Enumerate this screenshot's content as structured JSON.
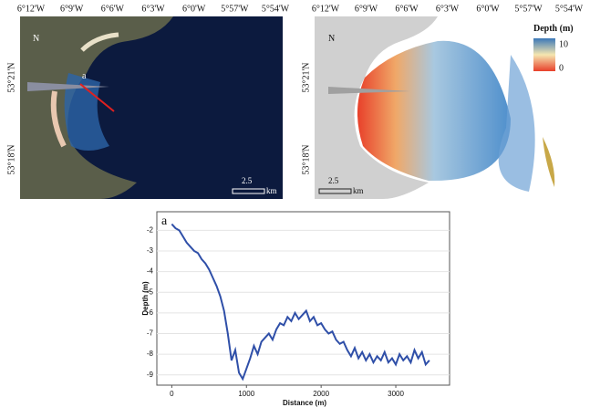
{
  "maps": [
    {
      "lon_labels": [
        "6°12'W",
        "6°9'W",
        "6°6'W",
        "6°3'W",
        "6°0'W",
        "5°57'W",
        "5°54'W"
      ],
      "lat_labels": [
        "53°21'N",
        "53°18'N"
      ],
      "north": "N",
      "scale": "2.5",
      "scale_unit": "km",
      "transect_label": "a"
    },
    {
      "lon_labels": [
        "6°12'W",
        "6°9'W",
        "6°6'W",
        "6°3'W",
        "6°0'W",
        "5°57'W",
        "5°54'W"
      ],
      "lat_labels": [
        "53°21'N",
        "53°18'N"
      ],
      "north": "N",
      "scale": "2.5",
      "scale_unit": "km",
      "legend_title": "Depth (m)",
      "legend_max": "10",
      "legend_min": "0"
    }
  ],
  "chart_data": {
    "type": "line",
    "panel_label": "a",
    "x_label": "Distance (m)",
    "y_label": "Depth (m)",
    "x": [
      0,
      50,
      100,
      150,
      200,
      250,
      300,
      350,
      400,
      450,
      500,
      550,
      600,
      650,
      700,
      750,
      800,
      850,
      900,
      950,
      1000,
      1050,
      1100,
      1150,
      1200,
      1250,
      1300,
      1350,
      1400,
      1450,
      1500,
      1550,
      1600,
      1650,
      1700,
      1750,
      1800,
      1850,
      1900,
      1950,
      2000,
      2050,
      2100,
      2150,
      2200,
      2250,
      2300,
      2350,
      2400,
      2450,
      2500,
      2550,
      2600,
      2650,
      2700,
      2750,
      2800,
      2850,
      2900,
      2950,
      3000,
      3050,
      3100,
      3150,
      3200,
      3250,
      3300,
      3350,
      3400,
      3450
    ],
    "series": [
      {
        "name": "Depth",
        "color": "#2f4fa8",
        "values": [
          -1.7,
          -1.9,
          -2.0,
          -2.3,
          -2.6,
          -2.8,
          -3.0,
          -3.1,
          -3.4,
          -3.6,
          -3.9,
          -4.3,
          -4.7,
          -5.2,
          -5.9,
          -7.0,
          -8.3,
          -7.8,
          -8.9,
          -9.2,
          -8.7,
          -8.2,
          -7.6,
          -8.0,
          -7.4,
          -7.2,
          -7.0,
          -7.3,
          -6.8,
          -6.5,
          -6.6,
          -6.2,
          -6.4,
          -6.0,
          -6.3,
          -6.1,
          -5.9,
          -6.4,
          -6.2,
          -6.6,
          -6.5,
          -6.8,
          -7.0,
          -6.9,
          -7.3,
          -7.5,
          -7.4,
          -7.8,
          -8.1,
          -7.7,
          -8.2,
          -7.9,
          -8.3,
          -8.0,
          -8.4,
          -8.1,
          -8.3,
          -7.9,
          -8.4,
          -8.2,
          -8.5,
          -8.0,
          -8.3,
          -8.1,
          -8.4,
          -7.8,
          -8.2,
          -7.9,
          -8.5,
          -8.3
        ]
      }
    ],
    "xlim": [
      -200,
      3720
    ],
    "ylim": [
      -9.5,
      -1.1
    ],
    "xticks": [
      0,
      1000,
      2000,
      3000
    ],
    "yticks": [
      -2,
      -3,
      -4,
      -5,
      -6,
      -7,
      -8,
      -9
    ],
    "grid": true
  }
}
